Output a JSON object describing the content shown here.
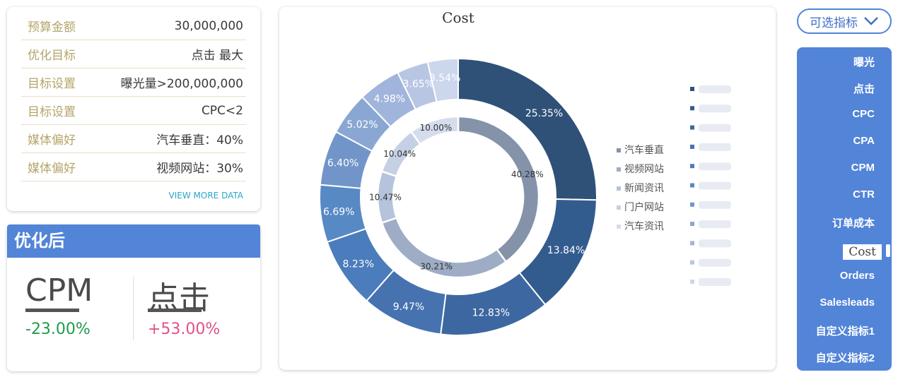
{
  "budget": {
    "rows": [
      {
        "label": "预算金额",
        "value": "30,000,000"
      },
      {
        "label": "优化目标",
        "value": "点击 最大"
      },
      {
        "label": "目标设置",
        "value": "曝光量>200,000,000"
      },
      {
        "label": "目标设置",
        "value": "CPC<2"
      },
      {
        "label": "媒体偏好",
        "value": "汽车垂直：40%"
      },
      {
        "label": "媒体偏好",
        "value": "视频网站：30%"
      }
    ],
    "view_more": "VIEW MORE DATA"
  },
  "optimized": {
    "title": "优化后",
    "metrics": [
      {
        "name": "CPM",
        "value": "-23.00%",
        "color": "#1e9c4b"
      },
      {
        "name": "点击",
        "value": "+53.00%",
        "color": "#e2508c"
      }
    ]
  },
  "metric_selector": {
    "button_label": "可选指标",
    "items": [
      "曝光",
      "点击",
      "CPC",
      "CPA",
      "CPM",
      "CTR",
      "订单成本",
      "Cost",
      "Orders",
      "Salesleads",
      "自定义指标1",
      "自定义指标2"
    ],
    "selected": "Cost"
  },
  "chart_data": {
    "type": "pie",
    "title": "Cost",
    "series": [
      {
        "ring": "inner",
        "legend": [
          "汽车垂直",
          "视频网站",
          "新闻资讯",
          "门户网站",
          "汽车资讯"
        ],
        "values": [
          40.28,
          30.21,
          10.47,
          10.04,
          10.0
        ],
        "labels": [
          "40.28%",
          "30.21%",
          "10.47%",
          "10.04%",
          "10.00%"
        ],
        "colors": [
          "#8493aa",
          "#9eacc5",
          "#b5c3dc",
          "#c5d0e5",
          "#d5dded"
        ]
      },
      {
        "ring": "outer",
        "legend": [
          "",
          "",
          "",
          "",
          "",
          "",
          "",
          "",
          "",
          "",
          ""
        ],
        "values": [
          25.35,
          13.84,
          12.83,
          9.47,
          8.23,
          6.69,
          6.4,
          5.02,
          4.98,
          3.65,
          3.54
        ],
        "labels": [
          "25.35%",
          "13.84%",
          "12.83%",
          "9.47%",
          "8.23%",
          "6.69%",
          "6.40%",
          "5.02%",
          "4.98%",
          "3.65%",
          "3.54%"
        ],
        "colors": [
          "#2f5178",
          "#335c8e",
          "#3d67a0",
          "#4672af",
          "#4b7cbb",
          "#5789c4",
          "#7195c9",
          "#8aa7d3",
          "#a1b5dc",
          "#b8c6e4",
          "#ccd6ec"
        ]
      }
    ],
    "legend_position": "right"
  }
}
